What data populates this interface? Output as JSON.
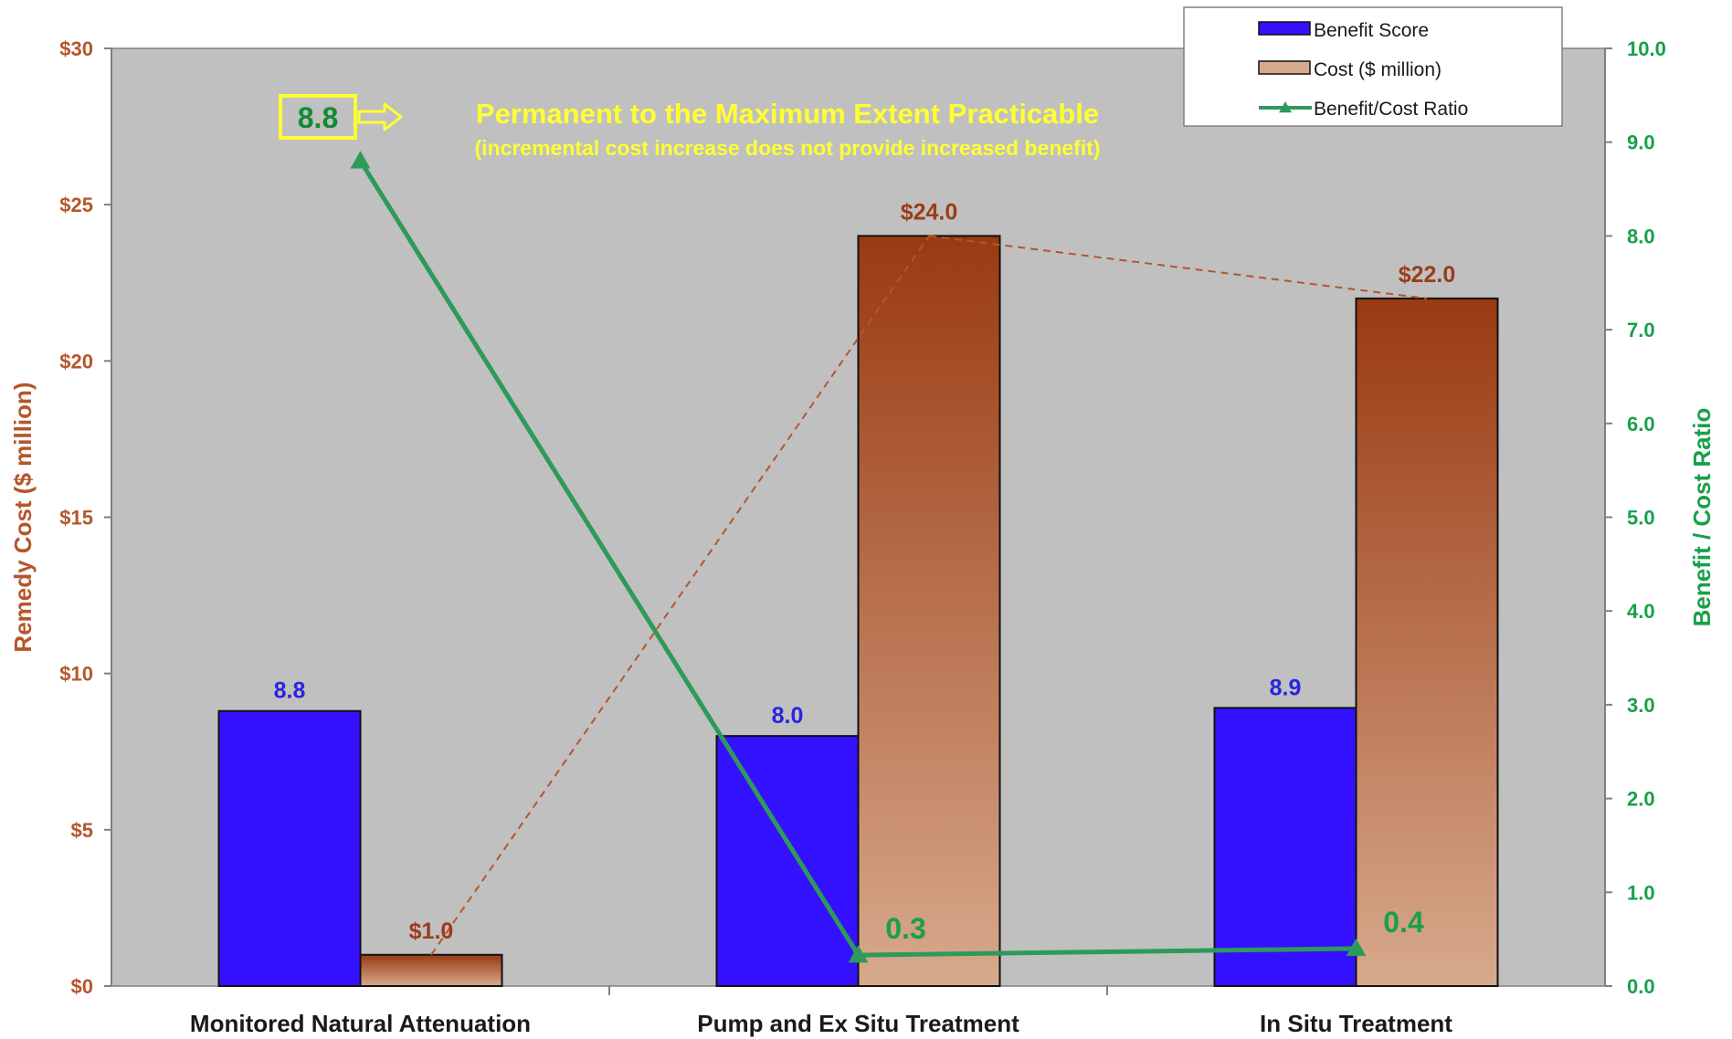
{
  "colors": {
    "plot_bg": "#c0c0c0",
    "benefit_bar": "#3311ff",
    "cost_bar_top": "#9a3a12",
    "cost_bar_bottom": "#d7a98c",
    "ratio_line": "#2e9a5a",
    "left_axis": "#b5562b",
    "right_axis": "#19a04a",
    "benefit_label": "#2a23e0",
    "cost_label": "#9a3c1a",
    "annotation": "#ffff33",
    "annotation_box_text": "#138a35",
    "connector": "#b5562b"
  },
  "annotation": {
    "box_value": "8.8",
    "title": "Permanent to the Maximum Extent Practicable",
    "subtitle": "(incremental cost increase does not provide increased benefit)"
  },
  "chart_data": {
    "type": "bar",
    "categories": [
      "Monitored Natural Attenuation",
      "Pump and Ex Situ Treatment",
      "In Situ Treatment"
    ],
    "series": [
      {
        "name": "Benefit Score",
        "axis": "left",
        "values": [
          8.8,
          8.0,
          8.9
        ],
        "labels": [
          "8.8",
          "8.0",
          "8.9"
        ]
      },
      {
        "name": "Cost ($ million)",
        "axis": "left",
        "values": [
          1.0,
          24.0,
          22.0
        ],
        "labels": [
          "$1.0",
          "$24.0",
          "$22.0"
        ]
      },
      {
        "name": "Benefit/Cost Ratio",
        "axis": "right",
        "type": "line",
        "values": [
          8.8,
          0.33,
          0.4
        ],
        "labels": [
          "",
          "0.3",
          "0.4"
        ]
      }
    ],
    "ylabel": "Remedy Cost ($ million)",
    "y2label": "Benefit / Cost Ratio",
    "ylim": [
      0,
      30
    ],
    "y2lim": [
      0,
      10
    ],
    "yticks": [
      "$0",
      "$5",
      "$10",
      "$15",
      "$20",
      "$25",
      "$30"
    ],
    "y2ticks": [
      "0.0",
      "1.0",
      "2.0",
      "3.0",
      "4.0",
      "5.0",
      "6.0",
      "7.0",
      "8.0",
      "9.0",
      "10.0"
    ],
    "legend": {
      "position": "top-right",
      "entries": [
        "Benefit Score",
        "Cost ($ million)",
        "Benefit/Cost Ratio"
      ]
    },
    "grid": false
  }
}
